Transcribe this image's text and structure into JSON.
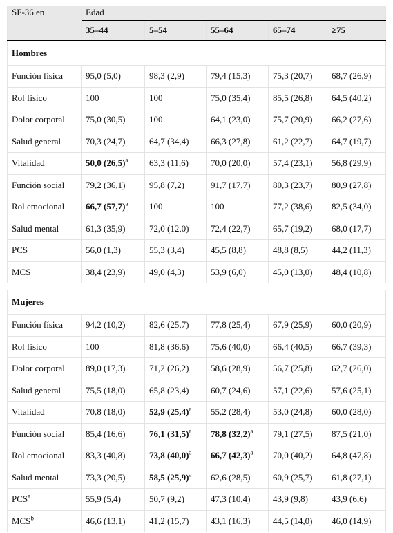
{
  "header": {
    "corner": "SF-36 en",
    "group": "Edad",
    "columns": [
      "35–44",
      "5–54",
      "55–64",
      "65–74",
      "≥75"
    ]
  },
  "sections": [
    {
      "title": "Hombres",
      "rows": [
        {
          "label": "Función física",
          "cells": [
            "95,0 (5,0)",
            "98,3 (2,9)",
            "79,4 (15,3)",
            "75,3 (20,7)",
            "68,7 (26,9)"
          ]
        },
        {
          "label": "Rol físico",
          "cells": [
            "100",
            "100",
            "75,0 (35,4)",
            "85,5 (26,8)",
            "64,5 (40,2)"
          ]
        },
        {
          "label": "Dolor corporal",
          "cells": [
            "75,0 (30,5)",
            "100",
            "64,1 (23,0)",
            "75,7 (20,9)",
            "66,2 (27,6)"
          ]
        },
        {
          "label": "Salud general",
          "cells": [
            "70,3 (24,7)",
            "64,7 (34,4)",
            "66,3 (27,8)",
            "61,2 (22,7)",
            "64,7 (19,7)"
          ]
        },
        {
          "label": "Vitalidad",
          "cells": [
            {
              "text": "50,0 (26,5)",
              "note": "a",
              "bold": true
            },
            "63,3 (11,6)",
            "70,0 (20,0)",
            "57,4 (23,1)",
            "56,8 (29,9)"
          ]
        },
        {
          "label": "Función social",
          "cells": [
            "79,2 (36,1)",
            "95,8 (7,2)",
            "91,7 (17,7)",
            "80,3 (23,7)",
            "80,9 (27,8)"
          ]
        },
        {
          "label": "Rol emocional",
          "cells": [
            {
              "text": "66,7 (57,7)",
              "note": "a",
              "bold": true
            },
            "100",
            "100",
            "77,2 (38,6)",
            "82,5 (34,0)"
          ]
        },
        {
          "label": "Salud mental",
          "cells": [
            "61,3 (35,9)",
            "72,0 (12,0)",
            "72,4 (22,7)",
            "65,7 (19,2)",
            "68,0 (17,7)"
          ]
        },
        {
          "label": "PCS",
          "cells": [
            "56,0 (1,3)",
            "55,3 (3,4)",
            "45,5 (8,8)",
            "48,8 (8,5)",
            "44,2 (11,3)"
          ]
        },
        {
          "label": "MCS",
          "cells": [
            "38,4 (23,9)",
            "49,0 (4,3)",
            "53,9 (6,0)",
            "45,0 (13,0)",
            "48,4 (10,8)"
          ]
        }
      ]
    },
    {
      "title": "Mujeres",
      "rows": [
        {
          "label": "Función física",
          "cells": [
            "94,2 (10,2)",
            "82,6 (25,7)",
            "77,8 (25,4)",
            "67,9 (25,9)",
            "60,0 (20,9)"
          ]
        },
        {
          "label": "Rol físico",
          "cells": [
            "100",
            "81,8 (36,6)",
            "75,6 (40,0)",
            "66,4 (40,5)",
            "66,7 (39,3)"
          ]
        },
        {
          "label": "Dolor corporal",
          "cells": [
            "89,0 (17,3)",
            "71,2 (26,2)",
            "58,6 (28,9)",
            "56,7 (25,8)",
            "62,7 (26,0)"
          ]
        },
        {
          "label": "Salud general",
          "cells": [
            "75,5 (18,0)",
            "65,8 (23,4)",
            "60,7 (24,6)",
            "57,1 (22,6)",
            "57,6 (25,1)"
          ]
        },
        {
          "label": "Vitalidad",
          "cells": [
            "70,8 (18,0)",
            {
              "text": "52,9 (25,4)",
              "note": "a",
              "bold": true
            },
            "55,2 (28,4)",
            "53,0 (24,8)",
            "60,0 (28,0)"
          ]
        },
        {
          "label": "Función social",
          "cells": [
            "85,4 (16,6)",
            {
              "text": "76,1 (31,5)",
              "note": "a",
              "bold": true
            },
            {
              "text": "78,8 (32,2)",
              "note": "a",
              "bold": true
            },
            "79,1 (27,5)",
            "87,5 (21,0)"
          ]
        },
        {
          "label": "Rol emocional",
          "cells": [
            "83,3 (40,8)",
            {
              "text": "73,8 (40,0)",
              "note": "a",
              "bold": true
            },
            {
              "text": "66,7 (42,3)",
              "note": "a",
              "bold": true
            },
            "70,0 (40,2)",
            "64,8 (47,8)"
          ]
        },
        {
          "label": "Salud mental",
          "cells": [
            "73,3 (20,5)",
            {
              "text": "58,5 (25,9)",
              "note": "a",
              "bold": true
            },
            "62,6 (28,5)",
            "60,9 (25,7)",
            "61,8 (27,1)"
          ]
        },
        {
          "label": {
            "text": "PCS",
            "note": "a"
          },
          "cells": [
            "55,9 (5,4)",
            "50,7 (9,2)",
            "47,3 (10,4)",
            "43,9 (9,8)",
            "43,9 (6,6)"
          ]
        },
        {
          "label": {
            "text": "MCS",
            "note": "b"
          },
          "cells": [
            "46,6 (13,1)",
            "41,2 (15,7)",
            "43,1 (16,3)",
            "44,5 (14,0)",
            "46,0 (14,9)"
          ]
        }
      ]
    }
  ]
}
